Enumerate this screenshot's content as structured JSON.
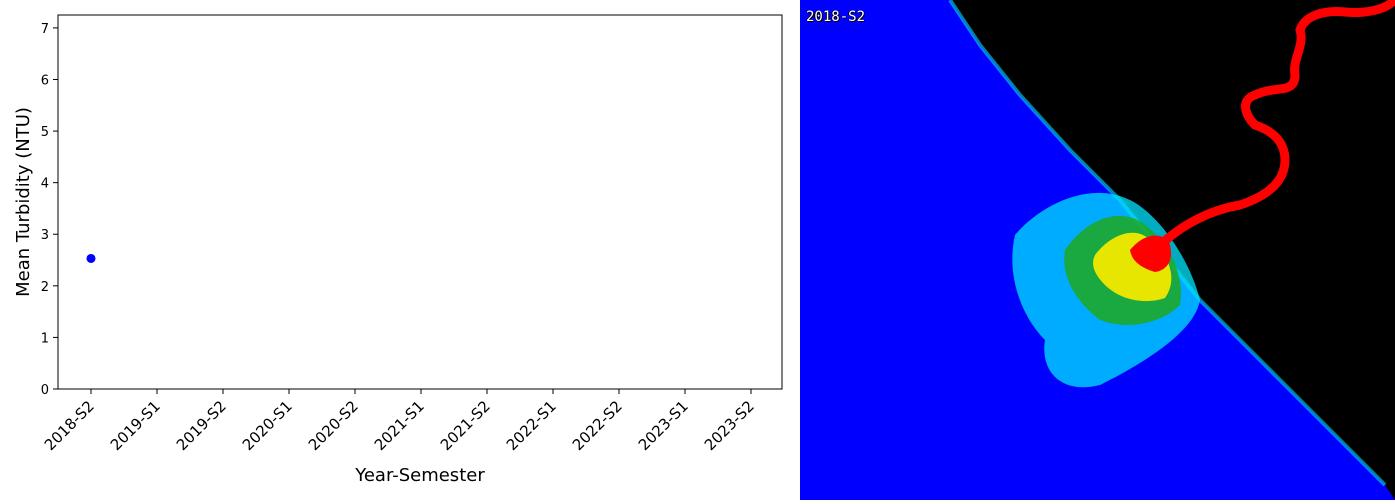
{
  "chart_data": {
    "type": "scatter",
    "title": "",
    "xlabel": "Year-Semester",
    "ylabel": "Mean Turbidity (NTU)",
    "categories": [
      "2018-S2",
      "2019-S1",
      "2019-S2",
      "2020-S1",
      "2020-S2",
      "2021-S1",
      "2021-S2",
      "2022-S1",
      "2022-S2",
      "2023-S1",
      "2023-S2"
    ],
    "ylim": [
      0,
      7.25
    ],
    "yticks": [
      "0",
      "1",
      "2",
      "3",
      "4",
      "5",
      "6",
      "7"
    ],
    "points": [
      {
        "x": "2018-S2",
        "y": 2.53
      }
    ],
    "point_color": "#0000ff",
    "grid": false
  },
  "map": {
    "label": "2018-S2",
    "colors": {
      "water": "#0000ff",
      "land": "#000000",
      "low": "#00e5ff",
      "mid": "#1fa81f",
      "high_mid": "#e6e600",
      "high": "#ff0000"
    }
  }
}
